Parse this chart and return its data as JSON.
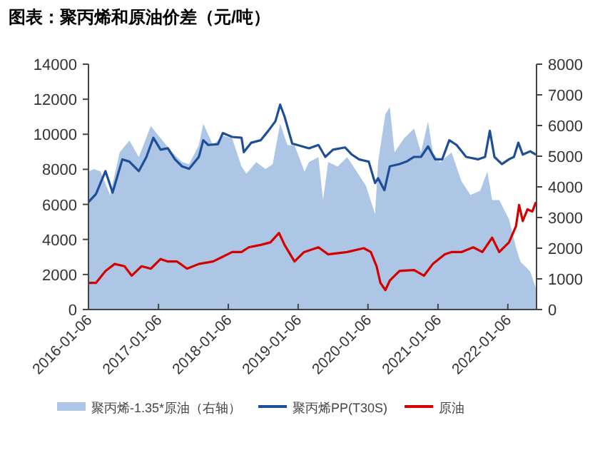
{
  "chart_data": {
    "type": "line",
    "title": "图表：聚丙烯和原油价差（元/吨）",
    "legend": "bottom",
    "grid": false,
    "xlim": [
      "2016-01-06",
      "2022-06-05"
    ],
    "xticks": [
      "2016-01-06",
      "2017-01-06",
      "2018-01-06",
      "2019-01-06",
      "2020-01-06",
      "2021-01-06",
      "2022-01-06"
    ],
    "ylim": [
      0,
      14000
    ],
    "yticks": [
      0,
      2000,
      4000,
      6000,
      8000,
      10000,
      12000,
      14000
    ],
    "y2lim": [
      0,
      8000
    ],
    "y2ticks": [
      0,
      1000,
      2000,
      3000,
      4000,
      5000,
      6000,
      7000,
      8000
    ],
    "series": [
      {
        "name": "聚丙烯-1.35*原油（右轴）",
        "type": "area",
        "axis": "y2",
        "color": "#adc6e5",
        "x": [
          "2016-01-06",
          "2016-02-03",
          "2016-03-09",
          "2016-04-28",
          "2016-06-17",
          "2016-08-07",
          "2016-09-25",
          "2016-11-27",
          "2017-01-17",
          "2017-03-19",
          "2017-05-09",
          "2017-06-15",
          "2017-08-05",
          "2017-08-28",
          "2017-10-18",
          "2017-12-08",
          "2018-01-26",
          "2018-03-16",
          "2018-04-11",
          "2018-06-01",
          "2018-07-19",
          "2018-08-26",
          "2018-10-04",
          "2018-11-11",
          "2018-12-18",
          "2019-02-08",
          "2019-03-04",
          "2019-04-22",
          "2019-05-16",
          "2019-06-12",
          "2019-08-01",
          "2019-09-19",
          "2019-11-08",
          "2019-12-26",
          "2020-02-12",
          "2020-02-28",
          "2020-04-06",
          "2020-04-29",
          "2020-05-24",
          "2020-07-13",
          "2020-09-03",
          "2020-10-09",
          "2020-11-15",
          "2020-12-10",
          "2021-01-17",
          "2021-03-18",
          "2021-05-08",
          "2021-06-25",
          "2021-08-15",
          "2021-09-21",
          "2021-10-16",
          "2021-11-22",
          "2022-01-12",
          "2022-02-18",
          "2022-03-13",
          "2022-04-08",
          "2022-05-03",
          "2022-06-02"
        ],
        "values": [
          4500,
          4580,
          4500,
          3730,
          5120,
          5510,
          4970,
          5980,
          5590,
          5120,
          4810,
          4740,
          5360,
          6060,
          5360,
          5670,
          5590,
          4660,
          4430,
          4810,
          4580,
          4740,
          6060,
          5360,
          5360,
          4500,
          4810,
          4970,
          3570,
          4810,
          4660,
          4970,
          4500,
          4040,
          3110,
          4810,
          6370,
          6600,
          5120,
          5590,
          5900,
          5120,
          6130,
          5120,
          4810,
          5120,
          4190,
          3730,
          3880,
          4500,
          3570,
          3570,
          2950,
          2020,
          1550,
          1400,
          1240,
          700
        ]
      },
      {
        "name": "聚丙烯PP(T30S)",
        "color": "#1f4e99",
        "x": [
          "2016-01-06",
          "2016-02-14",
          "2016-04-04",
          "2016-05-11",
          "2016-07-01",
          "2016-08-07",
          "2016-09-25",
          "2016-11-04",
          "2016-12-10",
          "2017-01-17",
          "2017-02-24",
          "2017-04-02",
          "2017-05-09",
          "2017-06-15",
          "2017-08-05",
          "2017-08-28",
          "2017-09-23",
          "2017-11-13",
          "2017-12-08",
          "2018-01-26",
          "2018-03-16",
          "2018-03-28",
          "2018-05-06",
          "2018-06-24",
          "2018-08-03",
          "2018-09-09",
          "2018-10-04",
          "2018-10-27",
          "2018-12-06",
          "2019-03-04",
          "2019-04-22",
          "2019-05-28",
          "2019-07-07",
          "2019-09-08",
          "2019-10-14",
          "2019-11-20",
          "2020-01-10",
          "2020-02-12",
          "2020-02-28",
          "2020-04-01",
          "2020-04-29",
          "2020-06-19",
          "2020-07-25",
          "2020-09-03",
          "2020-10-09",
          "2020-11-15",
          "2020-12-22",
          "2021-01-28",
          "2021-03-06",
          "2021-04-13",
          "2021-06-02",
          "2021-08-03",
          "2021-09-09",
          "2021-10-04",
          "2021-10-28",
          "2021-12-06",
          "2022-01-12",
          "2022-02-07",
          "2022-03-02",
          "2022-03-25",
          "2022-05-03",
          "2022-06-02"
        ],
        "values": [
          6130,
          6590,
          7900,
          6670,
          8570,
          8440,
          7900,
          8710,
          9800,
          9120,
          9200,
          8570,
          8170,
          8030,
          8710,
          9660,
          9390,
          9440,
          10070,
          9850,
          9800,
          8980,
          9520,
          9660,
          10200,
          10740,
          11690,
          11010,
          9470,
          9200,
          9390,
          8710,
          9120,
          9250,
          8840,
          8570,
          8440,
          7220,
          7490,
          6810,
          8170,
          8300,
          8440,
          8710,
          8710,
          9310,
          8570,
          8570,
          9660,
          9390,
          8710,
          8570,
          8710,
          10200,
          8710,
          8300,
          8570,
          8710,
          9520,
          8840,
          9030,
          8840
        ]
      },
      {
        "name": "原油",
        "color": "#d40000",
        "x": [
          "2016-01-06",
          "2016-02-14",
          "2016-04-04",
          "2016-05-22",
          "2016-07-12",
          "2016-08-19",
          "2016-10-09",
          "2016-11-27",
          "2017-01-17",
          "2017-02-24",
          "2017-04-13",
          "2017-06-04",
          "2017-08-05",
          "2017-10-18",
          "2017-12-08",
          "2018-01-26",
          "2018-03-16",
          "2018-04-23",
          "2018-06-24",
          "2018-08-14",
          "2018-09-28",
          "2018-10-27",
          "2018-12-18",
          "2019-02-06",
          "2019-04-22",
          "2019-06-12",
          "2019-09-19",
          "2019-12-15",
          "2020-01-21",
          "2020-02-20",
          "2020-03-11",
          "2020-04-06",
          "2020-04-29",
          "2020-06-19",
          "2020-09-03",
          "2020-10-25",
          "2020-12-10",
          "2021-02-11",
          "2021-03-18",
          "2021-05-08",
          "2021-07-09",
          "2021-08-26",
          "2021-10-16",
          "2021-11-22",
          "2022-01-12",
          "2022-02-18",
          "2022-03-06",
          "2022-03-25",
          "2022-04-19",
          "2022-05-14",
          "2022-06-02"
        ],
        "values": [
          1520,
          1520,
          2200,
          2600,
          2470,
          1930,
          2470,
          2330,
          2880,
          2740,
          2740,
          2330,
          2600,
          2740,
          3010,
          3280,
          3280,
          3550,
          3690,
          3830,
          4370,
          3690,
          2740,
          3280,
          3550,
          3150,
          3280,
          3500,
          3280,
          2470,
          1520,
          1110,
          1650,
          2200,
          2250,
          1930,
          2600,
          3150,
          3280,
          3280,
          3550,
          3280,
          4100,
          3280,
          3830,
          4770,
          5970,
          5050,
          5720,
          5590,
          6130
        ]
      }
    ]
  }
}
